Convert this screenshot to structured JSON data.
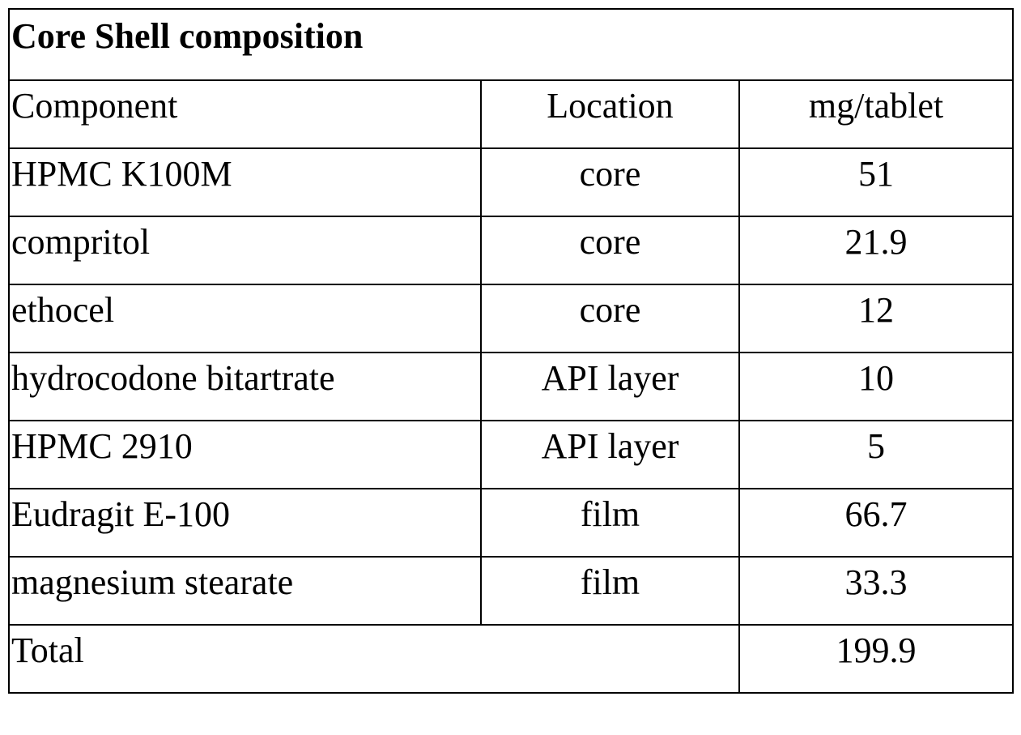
{
  "table": {
    "title": "Core Shell composition",
    "headers": [
      "Component",
      "Location",
      "mg/tablet"
    ],
    "rows": [
      {
        "component": "HPMC K100M",
        "location": "core",
        "mg": "51"
      },
      {
        "component": "compritol",
        "location": "core",
        "mg": "21.9"
      },
      {
        "component": "ethocel",
        "location": "core",
        "mg": "12"
      },
      {
        "component": "hydrocodone bitartrate",
        "location": "API layer",
        "mg": "10"
      },
      {
        "component": "HPMC 2910",
        "location": "API layer",
        "mg": "5"
      },
      {
        "component": "Eudragit E-100",
        "location": "film",
        "mg": "66.7"
      },
      {
        "component": "magnesium stearate",
        "location": "film",
        "mg": "33.3"
      }
    ],
    "total": {
      "label": "Total",
      "mg": "199.9"
    }
  }
}
